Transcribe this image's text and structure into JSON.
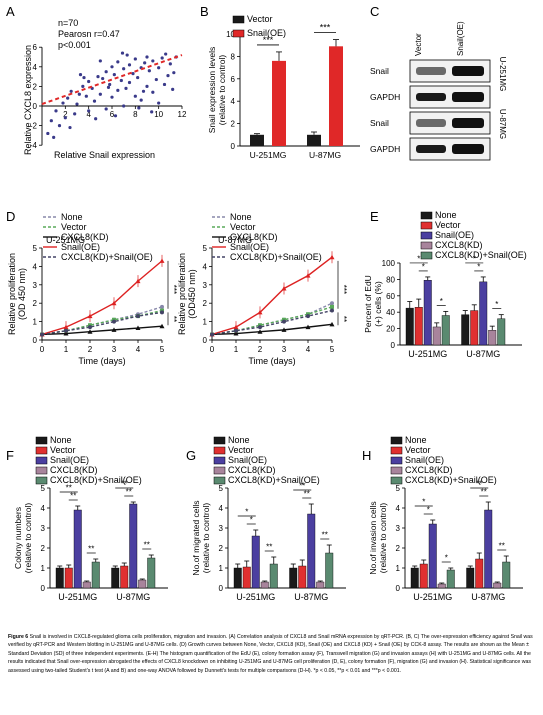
{
  "panels": {
    "A": {
      "letter": "A",
      "stats": [
        "n=70",
        "Pearosn r=0.47",
        "p<0.001"
      ],
      "ylabel": "Relative CXCL8 expression",
      "xlabel": "Relative Snail expression"
    },
    "B": {
      "letter": "B"
    },
    "C": {
      "letter": "C",
      "lanes": [
        "Vector",
        "Snail(OE)"
      ],
      "rows": [
        "Snail",
        "GAPDH",
        "Snail",
        "GAPDH"
      ],
      "cells": [
        "U-251MG",
        "U-87MG"
      ]
    },
    "D": {
      "letter": "D",
      "ylabel": "Relative proliferation (OD 450 nm)",
      "xlabel": "Time (days)"
    },
    "E": {
      "letter": "E"
    },
    "F": {
      "letter": "F"
    },
    "G": {
      "letter": "G"
    },
    "H": {
      "letter": "H"
    }
  },
  "legend_groups": [
    "None",
    "Vector",
    "Snail(OE)",
    "CXCL8(KD)",
    "CXCL8(KD)+Snail(OE)"
  ],
  "colors": {
    "None": "#1a1a1a",
    "Vector": "#e03030",
    "Snail(OE)": "#4b3fa0",
    "CXCL8(KD)": "#a8849c",
    "CXCL8(KD)+Snail(OE)": "#5a8a70",
    "vector_bar": "#1a1a1a",
    "snail_bar": "#e02828",
    "scatter_point": "#3a3a8a",
    "fit_line": "#e02828",
    "line_None": "#8888aa",
    "line_Vector": "#5aaa5a",
    "line_CXCL8KD": "#111111",
    "line_Snail": "#dd2222",
    "line_combo": "#444466"
  },
  "chart_data": [
    {
      "id": "A",
      "type": "scatter",
      "xlabel": "Relative Snail expression",
      "ylabel": "Relative CXCL8 expression",
      "xlim": [
        0,
        12
      ],
      "ylim": [
        -4,
        6
      ],
      "xticks": [
        2,
        4,
        6,
        8,
        10,
        12
      ],
      "yticks": [
        -4,
        -2,
        0,
        2,
        4,
        6
      ],
      "fit": [
        [
          0,
          0.2
        ],
        [
          12,
          5.2
        ]
      ],
      "points": [
        [
          0.5,
          -2.8
        ],
        [
          0.8,
          -1.5
        ],
        [
          1.0,
          -3.2
        ],
        [
          1.2,
          -0.5
        ],
        [
          1.5,
          -2.0
        ],
        [
          2.0,
          -1.2
        ],
        [
          2.2,
          0.8
        ],
        [
          2.5,
          1.5
        ],
        [
          3.0,
          0.2
        ],
        [
          3.2,
          1.2
        ],
        [
          3.5,
          2.0
        ],
        [
          3.8,
          1.0
        ],
        [
          4.0,
          -0.5
        ],
        [
          4.0,
          2.5
        ],
        [
          4.3,
          1.8
        ],
        [
          4.5,
          0.5
        ],
        [
          4.8,
          3.0
        ],
        [
          5.0,
          1.2
        ],
        [
          5.2,
          2.8
        ],
        [
          5.5,
          -0.3
        ],
        [
          5.5,
          3.5
        ],
        [
          5.8,
          2.2
        ],
        [
          6.0,
          0.9
        ],
        [
          6.0,
          4.0
        ],
        [
          6.2,
          3.2
        ],
        [
          6.5,
          1.6
        ],
        [
          6.5,
          4.5
        ],
        [
          6.8,
          2.6
        ],
        [
          7.0,
          0.0
        ],
        [
          7.0,
          3.8
        ],
        [
          7.2,
          1.8
        ],
        [
          7.5,
          4.2
        ],
        [
          7.5,
          2.4
        ],
        [
          7.8,
          3.3
        ],
        [
          8.0,
          1.0
        ],
        [
          8.0,
          4.8
        ],
        [
          8.2,
          2.9
        ],
        [
          8.5,
          3.9
        ],
        [
          8.5,
          0.6
        ],
        [
          8.8,
          4.4
        ],
        [
          9.0,
          2.0
        ],
        [
          9.0,
          5.0
        ],
        [
          9.2,
          3.6
        ],
        [
          9.5,
          1.4
        ],
        [
          9.5,
          4.6
        ],
        [
          9.8,
          2.7
        ],
        [
          10.0,
          3.9
        ],
        [
          10.0,
          0.3
        ],
        [
          10.3,
          4.9
        ],
        [
          10.5,
          2.2
        ],
        [
          10.8,
          3.1
        ],
        [
          11.0,
          4.3
        ],
        [
          11.2,
          1.7
        ],
        [
          11.5,
          5.0
        ],
        [
          2.8,
          -0.8
        ],
        [
          3.6,
          2.9
        ],
        [
          5.0,
          4.6
        ],
        [
          6.3,
          -1.0
        ],
        [
          7.3,
          5.2
        ],
        [
          8.3,
          -0.2
        ],
        [
          1.8,
          0.3
        ],
        [
          2.4,
          -2.2
        ],
        [
          3.3,
          3.2
        ],
        [
          4.6,
          -1.3
        ],
        [
          5.7,
          1.9
        ],
        [
          6.9,
          5.4
        ],
        [
          8.7,
          1.5
        ],
        [
          9.4,
          -0.6
        ],
        [
          10.6,
          5.3
        ],
        [
          11.3,
          3.4
        ]
      ]
    },
    {
      "id": "B",
      "type": "bar",
      "ylabel": "Snail expression levels (relative to control)",
      "categories": [
        "U-251MG",
        "U-87MG"
      ],
      "series": [
        {
          "name": "Vector",
          "values": [
            1.0,
            1.0
          ],
          "err": [
            0.1,
            0.25
          ]
        },
        {
          "name": "Snail(OE)",
          "values": [
            7.6,
            8.9
          ],
          "err": [
            0.8,
            0.6
          ]
        }
      ],
      "ylim": [
        0,
        10
      ],
      "yticks": [
        0,
        2,
        4,
        6,
        8,
        10
      ],
      "significance": [
        "***",
        "***"
      ]
    },
    {
      "id": "D1",
      "type": "line",
      "cell_line": "U-251MG",
      "xlabel": "Time (days)",
      "ylabel": "Relative proliferation (OD 450 nm)",
      "x": [
        0,
        1,
        2,
        3,
        4,
        5
      ],
      "xlim": [
        0,
        5
      ],
      "ylim": [
        0,
        5
      ],
      "yticks": [
        0,
        1,
        2,
        3,
        4,
        5
      ],
      "series": [
        {
          "name": "None",
          "values": [
            0.3,
            0.5,
            0.8,
            1.1,
            1.4,
            1.8
          ]
        },
        {
          "name": "Vector",
          "values": [
            0.3,
            0.5,
            0.8,
            1.1,
            1.3,
            1.6
          ]
        },
        {
          "name": "CXCL8(KD)",
          "values": [
            0.3,
            0.35,
            0.45,
            0.55,
            0.65,
            0.75
          ]
        },
        {
          "name": "Snail(OE)",
          "values": [
            0.3,
            0.7,
            1.3,
            2.0,
            3.2,
            4.3
          ]
        },
        {
          "name": "CXCL8(KD)+Snail(OE)",
          "values": [
            0.3,
            0.5,
            0.7,
            1.0,
            1.3,
            1.5
          ]
        }
      ],
      "significance": [
        "***",
        "**"
      ]
    },
    {
      "id": "D2",
      "type": "line",
      "cell_line": "U-87MG",
      "xlabel": "Time (days)",
      "ylabel": "Relative proliferation (OD450 nm)",
      "x": [
        0,
        1,
        2,
        3,
        4,
        5
      ],
      "xlim": [
        0,
        5
      ],
      "ylim": [
        0,
        5
      ],
      "yticks": [
        0,
        1,
        2,
        3,
        4,
        5
      ],
      "series": [
        {
          "name": "None",
          "values": [
            0.3,
            0.5,
            0.8,
            1.1,
            1.4,
            2.0
          ]
        },
        {
          "name": "Vector",
          "values": [
            0.3,
            0.5,
            0.8,
            1.1,
            1.4,
            1.8
          ]
        },
        {
          "name": "CXCL8(KD)",
          "values": [
            0.3,
            0.35,
            0.45,
            0.55,
            0.7,
            0.85
          ]
        },
        {
          "name": "Snail(OE)",
          "values": [
            0.3,
            0.7,
            1.5,
            2.8,
            3.5,
            4.5
          ]
        },
        {
          "name": "CXCL8(KD)+Snail(OE)",
          "values": [
            0.3,
            0.5,
            0.7,
            1.0,
            1.3,
            1.6
          ]
        }
      ],
      "significance": [
        "***",
        "**"
      ]
    },
    {
      "id": "E",
      "type": "bar",
      "ylabel": "Percent of EdU (+) cells (%)",
      "categories": [
        "U-251MG",
        "U-87MG"
      ],
      "series": [
        {
          "name": "None",
          "values": [
            45,
            37
          ],
          "err": [
            8,
            5
          ]
        },
        {
          "name": "Vector",
          "values": [
            46,
            42
          ],
          "err": [
            10,
            7
          ]
        },
        {
          "name": "Snail(OE)",
          "values": [
            79,
            77
          ],
          "err": [
            4,
            6
          ]
        },
        {
          "name": "CXCL8(KD)",
          "values": [
            22,
            18
          ],
          "err": [
            5,
            5
          ]
        },
        {
          "name": "CXCL8(KD)+Snail(OE)",
          "values": [
            36,
            32
          ],
          "err": [
            5,
            5
          ]
        }
      ],
      "ylim": [
        0,
        100
      ],
      "yticks": [
        0,
        20,
        40,
        60,
        80,
        100
      ],
      "significance": [
        "*",
        "*",
        "*",
        "*",
        "*",
        "*"
      ]
    },
    {
      "id": "F",
      "type": "bar",
      "ylabel": "Colony numbers (relative to control)",
      "categories": [
        "U-251MG",
        "U-87MG"
      ],
      "series": [
        {
          "name": "None",
          "values": [
            1.0,
            1.0
          ],
          "err": [
            0.1,
            0.1
          ]
        },
        {
          "name": "Vector",
          "values": [
            1.0,
            1.1
          ],
          "err": [
            0.15,
            0.15
          ]
        },
        {
          "name": "Snail(OE)",
          "values": [
            3.9,
            4.2
          ],
          "err": [
            0.2,
            0.1
          ]
        },
        {
          "name": "CXCL8(KD)",
          "values": [
            0.3,
            0.4
          ],
          "err": [
            0.05,
            0.05
          ]
        },
        {
          "name": "CXCL8(KD)+Snail(OE)",
          "values": [
            1.3,
            1.5
          ],
          "err": [
            0.15,
            0.15
          ]
        }
      ],
      "ylim": [
        0,
        5
      ],
      "yticks": [
        0,
        1,
        2,
        3,
        4,
        5
      ],
      "significance": [
        "**",
        "**",
        "**",
        "**",
        "**",
        "**"
      ]
    },
    {
      "id": "G",
      "type": "bar",
      "ylabel": "No.of migrated cells (relative to control)",
      "categories": [
        "U-251MG",
        "U-87MG"
      ],
      "series": [
        {
          "name": "None",
          "values": [
            1.0,
            1.0
          ],
          "err": [
            0.2,
            0.2
          ]
        },
        {
          "name": "Vector",
          "values": [
            1.05,
            1.1
          ],
          "err": [
            0.3,
            0.3
          ]
        },
        {
          "name": "Snail(OE)",
          "values": [
            2.6,
            3.7
          ],
          "err": [
            0.3,
            0.5
          ]
        },
        {
          "name": "CXCL8(KD)",
          "values": [
            0.3,
            0.3
          ],
          "err": [
            0.05,
            0.05
          ]
        },
        {
          "name": "CXCL8(KD)+Snail(OE)",
          "values": [
            1.2,
            1.75
          ],
          "err": [
            0.35,
            0.4
          ]
        }
      ],
      "ylim": [
        0,
        5
      ],
      "yticks": [
        0,
        1,
        2,
        3,
        4,
        5
      ],
      "significance": [
        "*",
        "*",
        "**",
        "**",
        "**",
        "**"
      ]
    },
    {
      "id": "H",
      "type": "bar",
      "ylabel": "No.of invasion cells (relative to control)",
      "categories": [
        "U-251MG",
        "U-87MG"
      ],
      "series": [
        {
          "name": "None",
          "values": [
            1.0,
            1.0
          ],
          "err": [
            0.1,
            0.1
          ]
        },
        {
          "name": "Vector",
          "values": [
            1.2,
            1.45
          ],
          "err": [
            0.2,
            0.3
          ]
        },
        {
          "name": "Snail(OE)",
          "values": [
            3.2,
            3.9
          ],
          "err": [
            0.2,
            0.4
          ]
        },
        {
          "name": "CXCL8(KD)",
          "values": [
            0.2,
            0.25
          ],
          "err": [
            0.05,
            0.05
          ]
        },
        {
          "name": "CXCL8(KD)+Snail(OE)",
          "values": [
            0.9,
            1.3
          ],
          "err": [
            0.1,
            0.3
          ]
        }
      ],
      "ylim": [
        0,
        5
      ],
      "yticks": [
        0,
        1,
        2,
        3,
        4,
        5
      ],
      "significance": [
        "*",
        "*",
        "*",
        "**",
        "**",
        "**"
      ]
    }
  ],
  "caption": {
    "lead": "Figure 6",
    "text": "Snail is involved in CXCL8-regulated glioma cells proliferation, migration and invasion. (A) Correlation analysis of CXCL8 and Snail mRNA expression by qRT-PCR. (B, C) The over-expression efficiency against Snail was verified by qRT-PCR and Western blotting in U-251MG and U-87MG cells. (D) Growth curves between None, Vector, CXCL8 (KD), Snail (OE) and CXCL8 (KD) + Snail (OE) by CCK-8 assay. The results are shown as the Mean ± Standard Deviation (SD) of three independent experiments. (E-H) The histogram quantification of the EdU (E), colony formation assay (F), Transwell migration (G) and invasion assays (H) with U-251MG and U-87MG cells. All the results indicated that Snail over-expression abrogated the effects of CXCL8 knockdown on inhibiting U-251MG and U-87MG cell proliferation (D, E), colony formation (F), migration (G) and invasion (H). Statistical significance was assessed using two-tailed Student's t test (A and B) and one-way ANOVA followed by Dunnett's tests for multiple comparisons (D-H). *p < 0.05, **p < 0.01 and ***p < 0.001."
  }
}
